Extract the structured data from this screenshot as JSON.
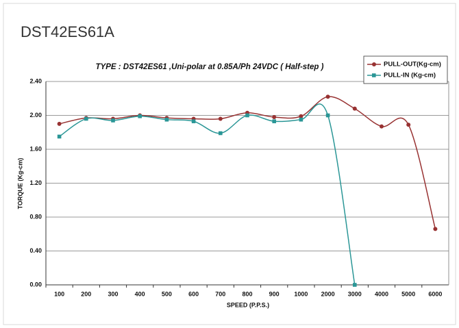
{
  "chart_data": {
    "type": "line",
    "heading": "DST42ES61A",
    "title": "TYPE : DST42ES61 ,Uni-polar at 0.85A/Ph 24VDC  ( Half-step )",
    "x_label": "SPEED (P.P.S.)",
    "y_label": "TORQUE (Kg-cm)",
    "categories": [
      "100",
      "200",
      "300",
      "400",
      "500",
      "600",
      "700",
      "800",
      "900",
      "1000",
      "2000",
      "3000",
      "4000",
      "5000",
      "6000"
    ],
    "series": [
      {
        "name": "PULL-OUT(Kg-cm)",
        "color": "#983232",
        "marker": "circle",
        "values": [
          1.9,
          1.97,
          1.96,
          2.0,
          1.97,
          1.96,
          1.96,
          2.03,
          1.98,
          1.99,
          2.22,
          2.08,
          1.87,
          1.89,
          0.66
        ]
      },
      {
        "name": "PULL-IN (Kg-cm)",
        "color": "#2a9696",
        "marker": "square",
        "values": [
          1.75,
          1.96,
          1.94,
          1.99,
          1.95,
          1.93,
          1.79,
          2.0,
          1.93,
          1.95,
          2.0,
          0.0,
          null,
          null,
          null
        ]
      }
    ],
    "ylim": [
      0,
      2.4
    ],
    "yticks": [
      {
        "value": 0,
        "label": "0.00"
      },
      {
        "value": 0.4,
        "label": "0.40"
      },
      {
        "value": 0.8,
        "label": "0.80"
      },
      {
        "value": 1.2,
        "label": "1.20"
      },
      {
        "value": 1.6,
        "label": "1.60"
      },
      {
        "value": 2.0,
        "label": "2.00"
      },
      {
        "value": 2.4,
        "label": "2.40"
      }
    ],
    "grid": true,
    "legend": "top-right",
    "smooth": true
  }
}
